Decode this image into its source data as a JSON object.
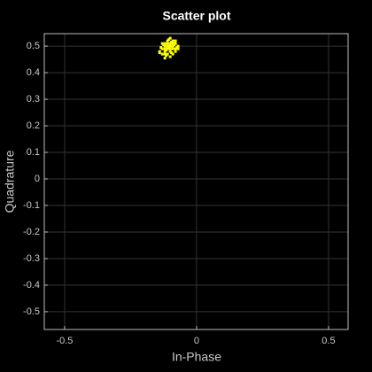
{
  "chart_data": {
    "type": "scatter",
    "title": "Scatter plot",
    "xlabel": "In-Phase",
    "ylabel": "Quadrature",
    "xlim": [
      -0.577,
      0.574
    ],
    "ylim": [
      -0.567,
      0.547
    ],
    "xticks": [
      -0.5,
      0,
      0.5
    ],
    "yticks": [
      0.5,
      0.4,
      0.3,
      0.2,
      0.1,
      0,
      -0.1,
      -0.2,
      -0.3,
      -0.4,
      -0.5
    ],
    "grid": true,
    "series": [
      {
        "color": "#ffff00",
        "x": [
          -0.1,
          -0.11,
          -0.09,
          -0.12,
          -0.08,
          -0.1,
          -0.11,
          -0.09,
          -0.13,
          -0.1,
          -0.12,
          -0.08,
          -0.11,
          -0.09,
          -0.1,
          -0.12,
          -0.07,
          -0.13,
          -0.1,
          -0.11,
          -0.09,
          -0.08,
          -0.12,
          -0.1,
          -0.13,
          -0.14,
          -0.09,
          -0.11,
          -0.1,
          -0.12,
          -0.085,
          -0.105,
          -0.115,
          -0.095,
          -0.125,
          -0.075,
          -0.105,
          -0.135,
          -0.095,
          -0.115,
          -0.12,
          -0.14,
          -0.08,
          -0.07
        ],
        "values": [
          0.5,
          0.49,
          0.51,
          0.5,
          0.49,
          0.48,
          0.52,
          0.47,
          0.49,
          0.51,
          0.48,
          0.52,
          0.5,
          0.5,
          0.49,
          0.51,
          0.5,
          0.51,
          0.53,
          0.47,
          0.49,
          0.48,
          0.47,
          0.46,
          0.47,
          0.48,
          0.52,
          0.51,
          0.5,
          0.49,
          0.505,
          0.495,
          0.485,
          0.515,
          0.505,
          0.495,
          0.525,
          0.495,
          0.475,
          0.465,
          0.455,
          0.475,
          0.51,
          0.49
        ]
      }
    ]
  }
}
